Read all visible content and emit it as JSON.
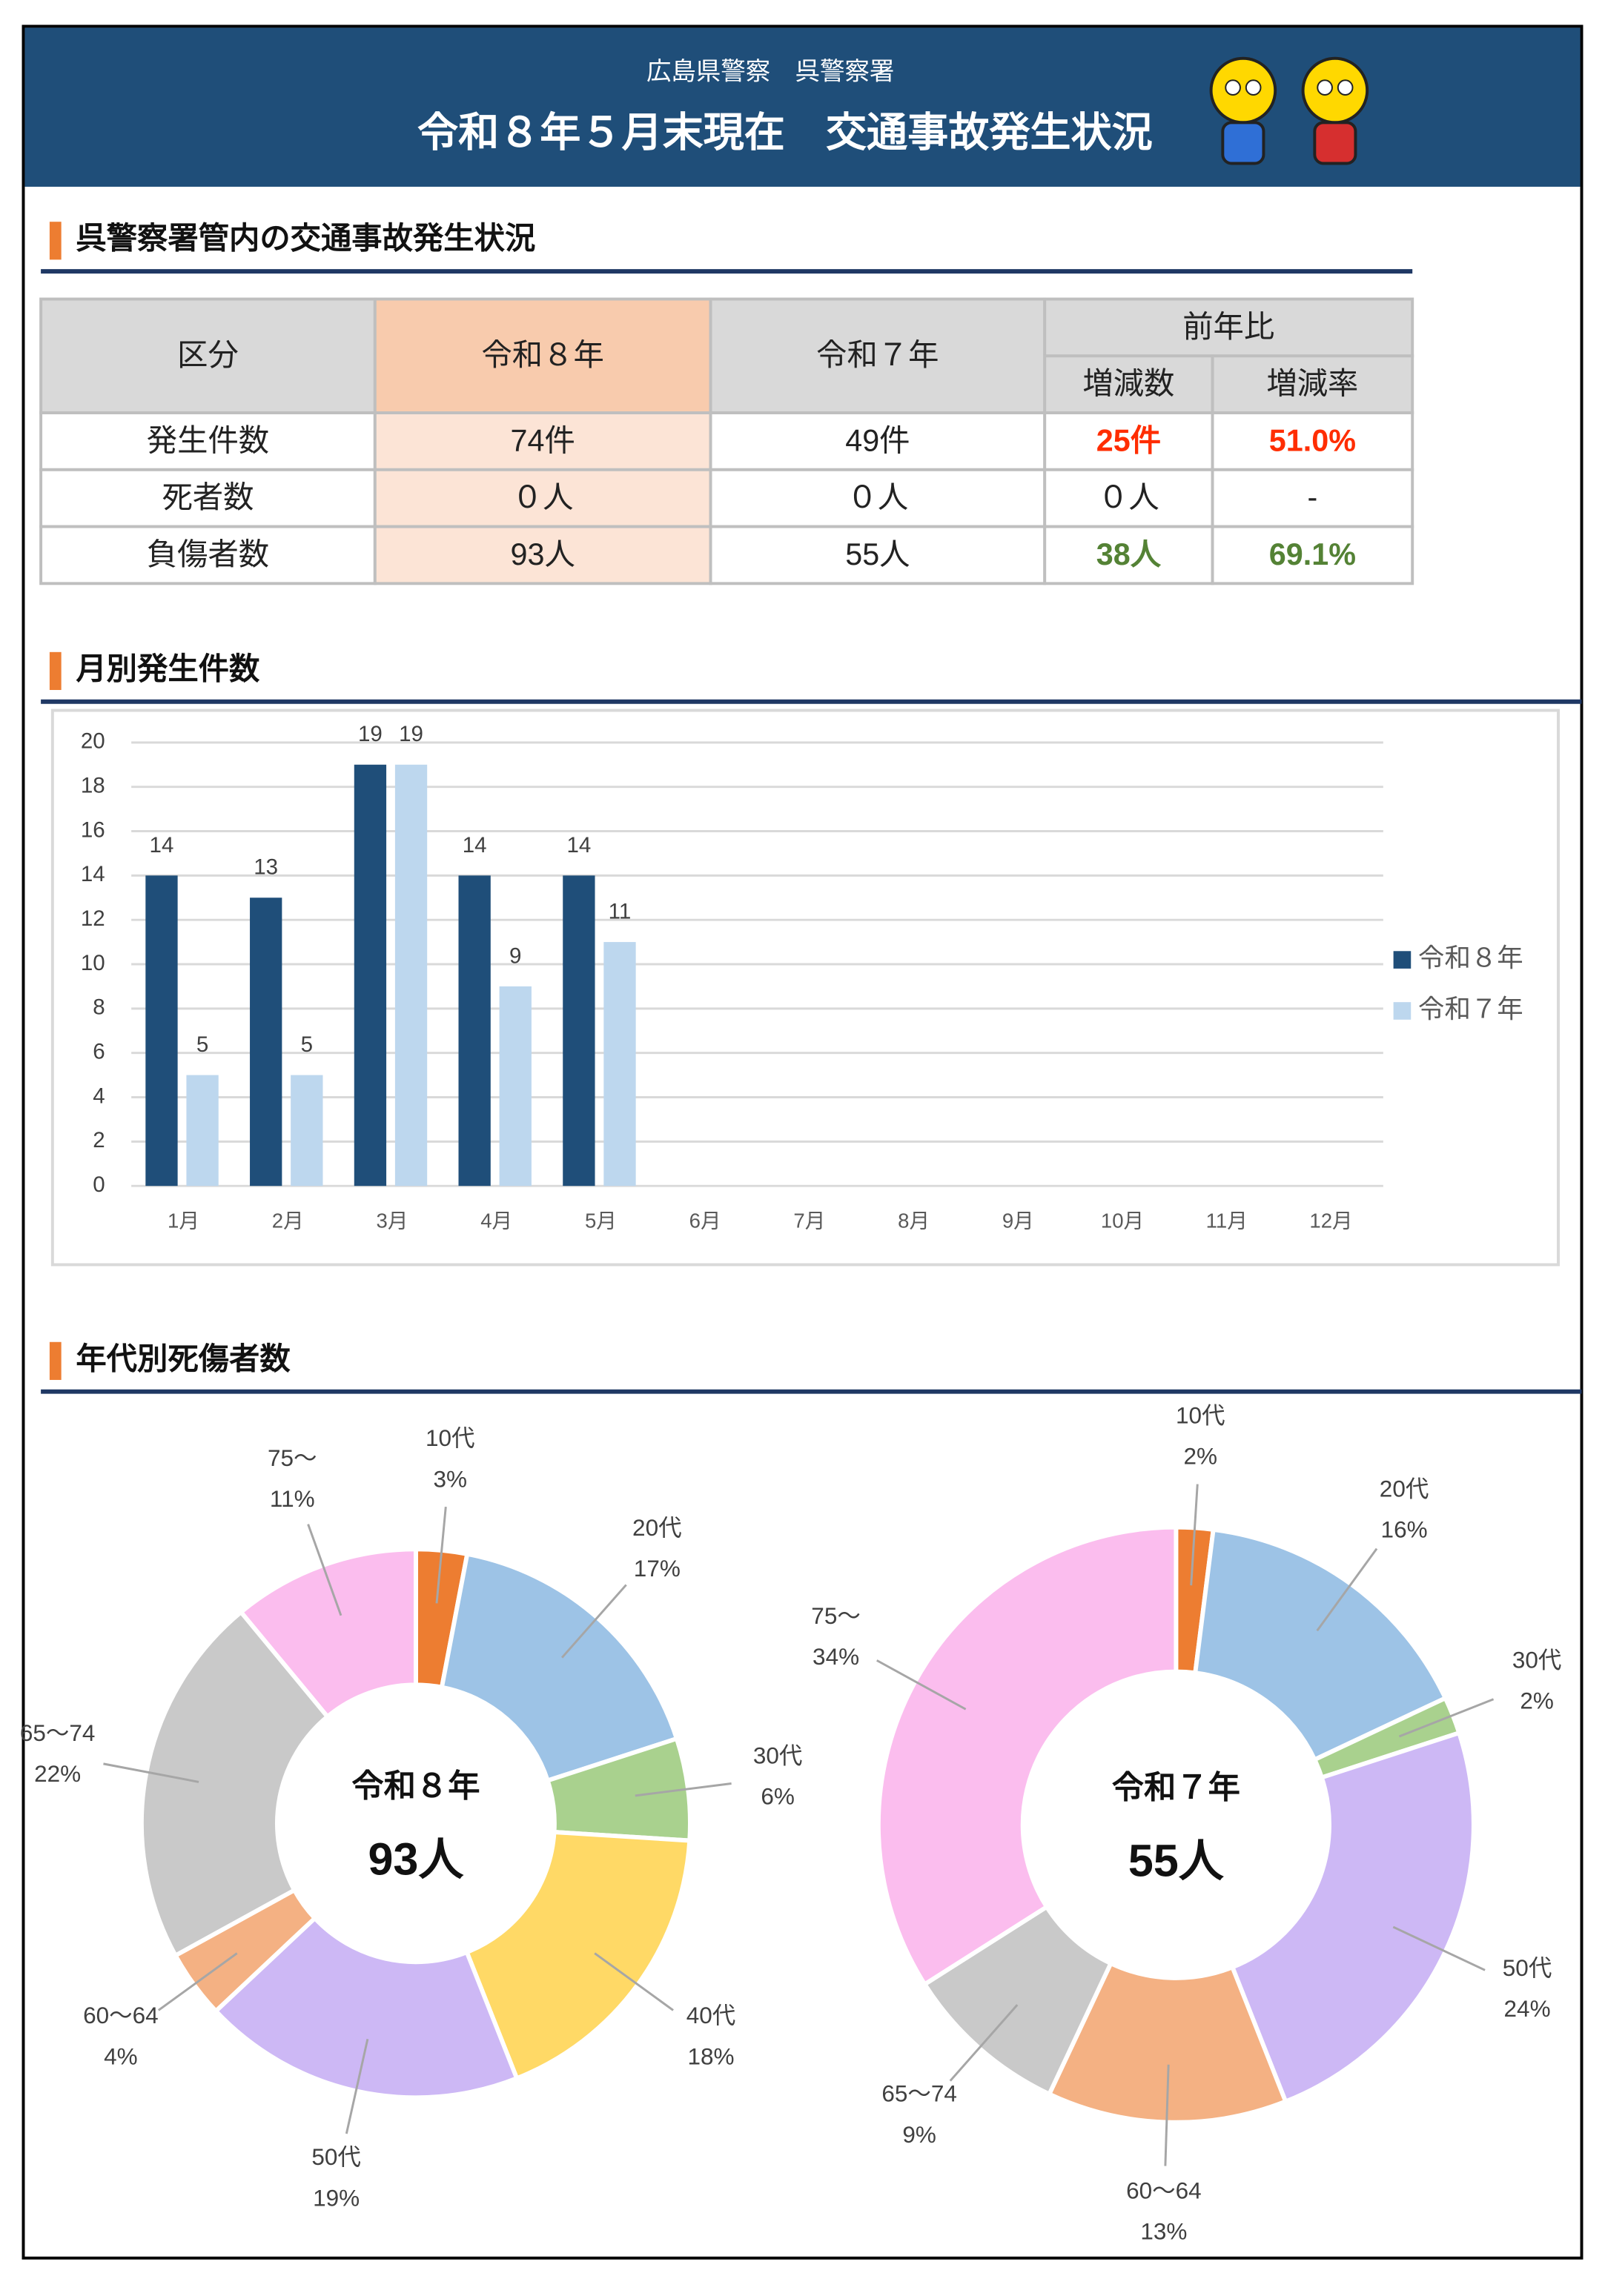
{
  "header": {
    "subtitle": "広島県警察　呉警察署",
    "title": "令和８年５月末現在　交通事故発生状況"
  },
  "sections": [
    "呉警察署管内の交通事故発生状況",
    "月別発生件数",
    "年代別死傷者数"
  ],
  "table": {
    "header": {
      "category": "区分",
      "current": "令和８年",
      "previous": "令和７年",
      "comparison": "前年比",
      "change": "増減数",
      "rate": "増減率"
    },
    "rows": [
      [
        "発生件数",
        "74件",
        "49件",
        "25件",
        "51.0%"
      ],
      [
        "死者数",
        "０人",
        "０人",
        "０人",
        "-"
      ],
      [
        "負傷者数",
        "93人",
        "55人",
        "38人",
        "69.1%"
      ]
    ]
  },
  "chart_data": [
    {
      "type": "bar",
      "categories": [
        "1月",
        "2月",
        "3月",
        "4月",
        "5月",
        "6月",
        "7月",
        "8月",
        "9月",
        "10月",
        "11月",
        "12月"
      ],
      "series": [
        {
          "name": "令和８年",
          "color": "#1f4e79",
          "values": [
            14,
            13,
            19,
            14,
            14,
            null,
            null,
            null,
            null,
            null,
            null,
            null
          ]
        },
        {
          "name": "令和７年",
          "color": "#bdd7ee",
          "values": [
            5,
            5,
            19,
            9,
            11,
            null,
            null,
            null,
            null,
            null,
            null,
            null
          ]
        }
      ],
      "ylim": [
        0,
        20
      ],
      "yticks": [
        0,
        2,
        4,
        6,
        8,
        10,
        12,
        14,
        16,
        18,
        20
      ],
      "grid": true,
      "legend": "right"
    },
    {
      "type": "pie",
      "center_title": "令和８年",
      "center_value": "93人",
      "categories": [
        "10代",
        "20代",
        "30代",
        "40代",
        "50代",
        "60～64",
        "65～74",
        "75～"
      ],
      "values": [
        3,
        17,
        6,
        18,
        19,
        4,
        22,
        11
      ],
      "value_labels": [
        "3%",
        "17%",
        "6%",
        "18%",
        "19%",
        "4%",
        "22%",
        "11%"
      ],
      "colors": [
        "#ed7d31",
        "#9dc3e6",
        "#a9d18e",
        "#ffd966",
        "#cdb8f5",
        "#f4b183",
        "#c9c9c9",
        "#fbbdee"
      ]
    },
    {
      "type": "pie",
      "center_title": "令和７年",
      "center_value": "55人",
      "categories": [
        "10代",
        "20代",
        "30代",
        "50代",
        "60～64",
        "65～74",
        "75～"
      ],
      "values": [
        2,
        16,
        2,
        24,
        13,
        9,
        34
      ],
      "value_labels": [
        "2%",
        "16%",
        "2%",
        "24%",
        "13%",
        "9%",
        "34%"
      ],
      "colors": [
        "#ed7d31",
        "#9dc3e6",
        "#a9d18e",
        "#cdb8f5",
        "#f4b183",
        "#c9c9c9",
        "#fbbdee"
      ]
    }
  ]
}
